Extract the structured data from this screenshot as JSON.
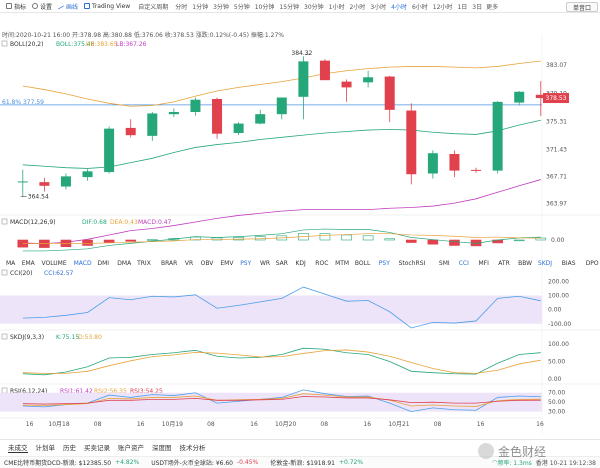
{
  "toolbar": {
    "items": [
      "指标",
      "设置",
      "画线",
      "Trading View"
    ],
    "period_label": "自定义周期",
    "periods": [
      "分时",
      "1分钟",
      "3分钟",
      "5分钟",
      "10分钟",
      "15分钟",
      "30分钟",
      "1小时",
      "2小时",
      "3小时",
      "4小时",
      "6小时",
      "12小时",
      "1日",
      "3日"
    ],
    "active_period": "4小时",
    "more": "更多",
    "single_label": "单音口"
  },
  "ohlc_line": "时间:2020-10-21 16:00 开:378.98 高:380.88 低:376.06 收:378.53 涨跌:0.12%(-0.45) 振幅:1.27%",
  "boll_legend": {
    "name": "BOLL(20,2)",
    "boll": "BOLL:375.46",
    "ub": "UB:383.65",
    "lb": "LB:367.26"
  },
  "price_labels": [
    "383.07",
    "379.19",
    "375.31",
    "371.43",
    "367.71",
    "363.97"
  ],
  "current_price": "378.53",
  "fib_label": "61.8% 377.59",
  "high_marker": "384.32",
  "low_marker": "364.54",
  "macd_legend": {
    "name": "MACD(12,26,9)",
    "dif": "DIF:0.68",
    "dea": "DEA:0.43",
    "macd": "MACD:0.47"
  },
  "macd_axis": "0.00",
  "indicator_buttons": [
    "MA",
    "EMA",
    "VOLUME",
    "MACD",
    "DMI",
    "DMA",
    "TRIX",
    "BRAR",
    "VR",
    "OBV",
    "EMV",
    "PSY",
    "WR",
    "SAR",
    "KDJ",
    "ROC",
    "MTM",
    "BOLL",
    "PSY",
    "StochRSI",
    "SMI",
    "CCI",
    "MFI",
    "ATR",
    "BBW",
    "SKDJ",
    "BIAS",
    "DPO",
    "AO",
    "Position"
  ],
  "active_indicators": [
    "MACD",
    "PSY",
    "SKDJ",
    "CCI"
  ],
  "cci_legend": {
    "name": "CCI(20)",
    "value": "CCI:62.57"
  },
  "cci_axis": [
    "200.00",
    "100.00",
    "0.00",
    "-100.00"
  ],
  "skdj_legend": {
    "name": "SKDJ(9,3,3)",
    "k": "K:75.15",
    "d": "D:53.80"
  },
  "skdj_axis": [
    "100.00",
    "50.00",
    "0.00"
  ],
  "rsi_legend": {
    "name": "RSI(6,12,24)",
    "rsi1": "RSI1:61.42",
    "rsi2": "RSI2:56.35",
    "rsi3": "RSI3:54.25"
  },
  "rsi_axis": [
    "70.00",
    "50.00",
    "30.00"
  ],
  "xaxis": [
    "16",
    "10月18",
    "08",
    "16",
    "10月19",
    "08",
    "16",
    "10月20",
    "08",
    "16",
    "10月21",
    "08",
    "16",
    "16"
  ],
  "bottom_tabs": [
    "未成交",
    "计划单",
    "历史",
    "买卖记录",
    "账户资产",
    "深度图",
    "技术分析"
  ],
  "footer": {
    "t1": "CME比特币期货DCD-新浪: $12385.50",
    "c1": "+4.82%",
    "t2": "USDT场外-火币全球站: ¥6.60",
    "c2": "-0.45%",
    "t3": "伦敦金-新浪: $1918.91",
    "c3": "+0.72%",
    "freq": "频率: 1.3ms",
    "time": "香港 10-21 19:12:38"
  },
  "watermark": "金色财经",
  "colors": {
    "up": "#26a77a",
    "down": "#e0414c",
    "accent": "#2b6fd6"
  },
  "chart_data": {
    "type": "candlestick",
    "candles": [
      {
        "o": 367.0,
        "h": 368.6,
        "l": 364.9,
        "c": 367.0
      },
      {
        "o": 366.9,
        "h": 367.5,
        "l": 365.6,
        "c": 366.4
      },
      {
        "o": 366.3,
        "h": 368.1,
        "l": 365.9,
        "c": 367.7
      },
      {
        "o": 367.6,
        "h": 368.7,
        "l": 367.1,
        "c": 368.4
      },
      {
        "o": 368.3,
        "h": 374.6,
        "l": 368.1,
        "c": 374.3
      },
      {
        "o": 374.4,
        "h": 375.6,
        "l": 373.1,
        "c": 373.4
      },
      {
        "o": 373.3,
        "h": 376.6,
        "l": 372.6,
        "c": 376.4
      },
      {
        "o": 376.3,
        "h": 377.1,
        "l": 375.9,
        "c": 376.6
      },
      {
        "o": 376.6,
        "h": 378.6,
        "l": 376.1,
        "c": 378.3
      },
      {
        "o": 378.4,
        "h": 378.6,
        "l": 372.9,
        "c": 373.6
      },
      {
        "o": 373.7,
        "h": 375.2,
        "l": 373.4,
        "c": 375.0
      },
      {
        "o": 375.0,
        "h": 376.9,
        "l": 374.9,
        "c": 376.3
      },
      {
        "o": 376.3,
        "h": 378.6,
        "l": 375.6,
        "c": 378.6
      },
      {
        "o": 378.7,
        "h": 384.3,
        "l": 375.6,
        "c": 383.6
      },
      {
        "o": 383.7,
        "h": 383.9,
        "l": 381.0,
        "c": 381.0
      },
      {
        "o": 380.8,
        "h": 381.1,
        "l": 378.0,
        "c": 380.0
      },
      {
        "o": 380.7,
        "h": 382.3,
        "l": 380.0,
        "c": 381.4
      },
      {
        "o": 381.5,
        "h": 381.6,
        "l": 375.2,
        "c": 376.9
      },
      {
        "o": 376.8,
        "h": 377.8,
        "l": 366.6,
        "c": 368.0
      },
      {
        "o": 368.1,
        "h": 371.3,
        "l": 367.4,
        "c": 370.9
      },
      {
        "o": 370.8,
        "h": 371.3,
        "l": 367.6,
        "c": 368.5
      },
      {
        "o": 368.6,
        "h": 368.9,
        "l": 368.2,
        "c": 368.5
      },
      {
        "o": 368.5,
        "h": 378.1,
        "l": 368.1,
        "c": 378.0
      },
      {
        "o": 377.9,
        "h": 379.5,
        "l": 377.5,
        "c": 379.4
      },
      {
        "o": 378.98,
        "h": 380.88,
        "l": 376.06,
        "c": 378.53
      }
    ],
    "boll_mid": [
      369.3,
      369.1,
      368.9,
      368.8,
      369.0,
      369.6,
      370.2,
      371.0,
      371.7,
      372.1,
      372.4,
      372.8,
      373.1,
      373.4,
      373.7,
      373.9,
      374.1,
      374.2,
      374.1,
      373.8,
      373.6,
      373.5,
      374.0,
      374.8,
      375.46
    ],
    "boll_ub": [
      380.2,
      379.7,
      379.1,
      378.4,
      377.8,
      377.4,
      377.5,
      378.0,
      378.8,
      379.5,
      380.0,
      380.4,
      380.8,
      381.3,
      381.9,
      382.3,
      382.6,
      382.8,
      382.9,
      382.9,
      382.8,
      382.7,
      382.9,
      383.3,
      383.65
    ],
    "boll_lb": [
      358.5,
      358.4,
      358.6,
      359.0,
      359.6,
      360.2,
      360.5,
      360.9,
      361.4,
      361.9,
      362.3,
      362.6,
      362.9,
      363.1,
      363.1,
      363.1,
      363.1,
      363.3,
      363.4,
      363.6,
      364.0,
      364.6,
      365.5,
      366.4,
      367.26
    ],
    "macd_hist": [
      -1.7,
      -1.8,
      -1.6,
      -1.3,
      -0.6,
      -0.3,
      0.1,
      0.4,
      0.7,
      0.5,
      0.6,
      0.8,
      1.0,
      1.6,
      1.5,
      1.2,
      1.0,
      0.3,
      -0.6,
      -1.0,
      -1.3,
      -1.4,
      -0.7,
      0.0,
      0.47
    ],
    "macd_dif": [
      -2.6,
      -2.6,
      -2.4,
      -2.1,
      -1.3,
      -0.8,
      -0.3,
      0.2,
      0.8,
      0.6,
      0.8,
      1.1,
      1.5,
      2.4,
      2.6,
      2.5,
      2.5,
      1.8,
      0.6,
      0.1,
      -0.4,
      -0.8,
      0.0,
      0.5,
      0.68
    ],
    "macd_dea": [
      -0.9,
      -0.8,
      -0.8,
      -0.8,
      -0.7,
      -0.5,
      -0.4,
      -0.2,
      0.1,
      0.1,
      0.2,
      0.3,
      0.5,
      0.8,
      1.1,
      1.3,
      1.5,
      1.5,
      1.2,
      1.1,
      0.9,
      0.6,
      0.7,
      0.5,
      0.43
    ],
    "cci": [
      -60,
      -55,
      -40,
      -20,
      85,
      70,
      95,
      90,
      105,
      10,
      30,
      55,
      80,
      160,
      110,
      60,
      65,
      -15,
      -130,
      -90,
      -95,
      -80,
      80,
      95,
      62.57
    ],
    "skdj_k": [
      15,
      12,
      20,
      35,
      60,
      62,
      70,
      75,
      82,
      65,
      60,
      62,
      70,
      88,
      85,
      75,
      70,
      50,
      22,
      18,
      15,
      14,
      45,
      70,
      75.15
    ],
    "skdj_d": [
      18,
      16,
      16,
      22,
      38,
      52,
      64,
      69,
      76,
      74,
      69,
      63,
      64,
      73,
      81,
      83,
      77,
      65,
      47,
      30,
      18,
      16,
      25,
      43,
      53.8
    ],
    "rsi6": [
      42,
      40,
      45,
      48,
      65,
      60,
      66,
      64,
      70,
      48,
      52,
      56,
      60,
      76,
      68,
      62,
      63,
      48,
      30,
      38,
      34,
      33,
      60,
      63,
      61.42
    ],
    "rsi12": [
      44,
      43,
      45,
      47,
      58,
      57,
      60,
      60,
      63,
      54,
      55,
      56,
      58,
      68,
      65,
      61,
      61,
      54,
      42,
      44,
      42,
      41,
      53,
      56,
      56.35
    ],
    "rsi24": [
      47,
      46,
      47,
      48,
      54,
      54,
      56,
      56,
      58,
      54,
      54,
      55,
      56,
      62,
      61,
      59,
      59,
      55,
      49,
      50,
      48,
      48,
      52,
      54,
      54.25
    ]
  }
}
